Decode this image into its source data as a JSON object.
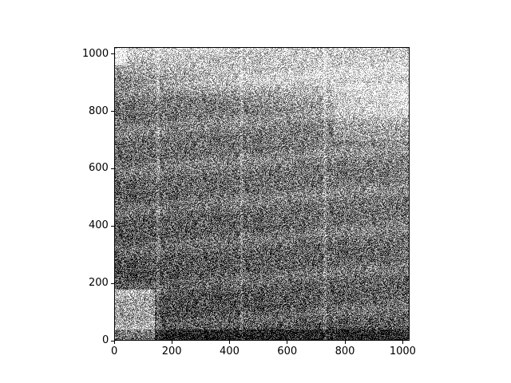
{
  "chart_data": {
    "type": "heatmap",
    "colormap": "gray",
    "title": "",
    "xlabel": "",
    "ylabel": "",
    "xlim": [
      0,
      1024
    ],
    "ylim": [
      0,
      1024
    ],
    "origin": "lower",
    "x_ticks": [
      "0",
      "200",
      "400",
      "600",
      "800",
      "1000"
    ],
    "y_ticks": [
      "0",
      "200",
      "400",
      "600",
      "800",
      "1000"
    ],
    "grid": false
  }
}
